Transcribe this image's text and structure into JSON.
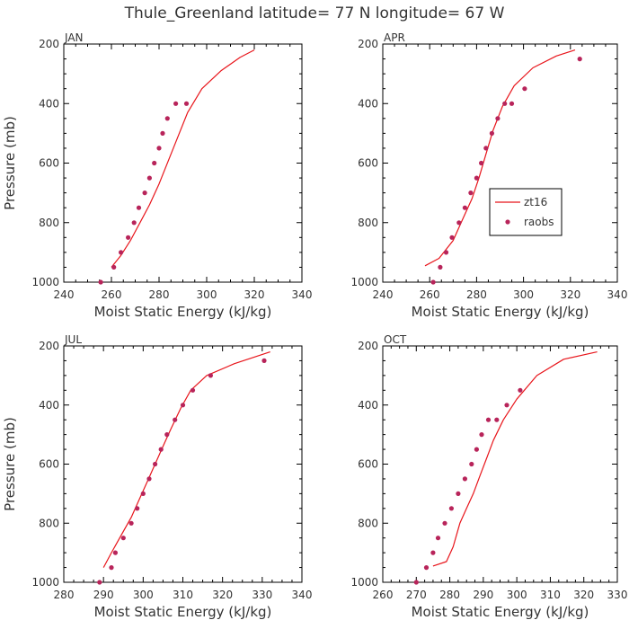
{
  "figure": {
    "title": "Thule_Greenland  latitude= 77 N longitude= 67 W",
    "legend": {
      "model_label": "zt16",
      "obs_label": "raobs",
      "placement": "APR panel, center-right"
    },
    "colors": {
      "model": "#e8151b",
      "obs": "#b8245a",
      "axes": "#000000",
      "text": "#333333"
    }
  },
  "chart_data": [
    {
      "type": "line",
      "month": "JAN",
      "xlabel": "Moist Static Energy (kJ/kg)",
      "ylabel": "Pressure (mb)",
      "xlim": [
        240,
        340
      ],
      "ylim": [
        1000,
        200
      ],
      "xticks": [
        240,
        260,
        280,
        300,
        320,
        340
      ],
      "yticks": [
        200,
        400,
        600,
        800,
        1000
      ],
      "series": [
        {
          "name": "zt16",
          "style": "line",
          "x": [
            260,
            264,
            268,
            272,
            276,
            280,
            284,
            288,
            292,
            298,
            306,
            314,
            320
          ],
          "y": [
            950,
            910,
            860,
            800,
            740,
            670,
            590,
            510,
            430,
            350,
            290,
            245,
            220
          ]
        },
        {
          "name": "raobs",
          "style": "points",
          "x": [
            255.5,
            261,
            264,
            267,
            269.5,
            271.5,
            274,
            276,
            278,
            280,
            281.5,
            283.5,
            287,
            291.5
          ],
          "y": [
            1000,
            950,
            900,
            850,
            800,
            750,
            700,
            650,
            600,
            550,
            500,
            450,
            400,
            400
          ]
        }
      ]
    },
    {
      "type": "line",
      "month": "APR",
      "xlabel": "Moist Static Energy (kJ/kg)",
      "ylabel": "",
      "xlim": [
        240,
        340
      ],
      "ylim": [
        1000,
        200
      ],
      "xticks": [
        240,
        260,
        280,
        300,
        320,
        340
      ],
      "yticks": [
        200,
        400,
        600,
        800,
        1000
      ],
      "series": [
        {
          "name": "zt16",
          "style": "line",
          "x": [
            258,
            264,
            270,
            274,
            278,
            281,
            284,
            287,
            291,
            296,
            304,
            314,
            322
          ],
          "y": [
            945,
            920,
            860,
            790,
            720,
            650,
            570,
            490,
            410,
            340,
            280,
            240,
            220
          ]
        },
        {
          "name": "raobs",
          "style": "points",
          "x": [
            261.5,
            264.5,
            267,
            269.5,
            272.5,
            275,
            277.5,
            280,
            282,
            284,
            286.5,
            289,
            292,
            295,
            300.5,
            324
          ],
          "y": [
            1000,
            950,
            900,
            850,
            800,
            750,
            700,
            650,
            600,
            550,
            500,
            450,
            400,
            400,
            350,
            250
          ]
        }
      ]
    },
    {
      "type": "line",
      "month": "JUL",
      "xlabel": "Moist Static Energy (kJ/kg)",
      "ylabel": "Pressure (mb)",
      "xlim": [
        280,
        340
      ],
      "ylim": [
        1000,
        200
      ],
      "xticks": [
        280,
        290,
        300,
        310,
        320,
        330,
        340
      ],
      "yticks": [
        200,
        400,
        600,
        800,
        1000
      ],
      "series": [
        {
          "name": "zt16",
          "style": "line",
          "x": [
            290,
            292,
            294.5,
            297,
            299,
            301,
            303,
            305,
            307,
            309.5,
            312,
            316,
            323,
            332
          ],
          "y": [
            950,
            900,
            840,
            780,
            720,
            660,
            600,
            540,
            480,
            410,
            350,
            300,
            260,
            220
          ]
        },
        {
          "name": "raobs",
          "style": "points",
          "x": [
            289,
            292,
            293,
            295,
            297,
            298.5,
            300,
            301.5,
            303,
            304.5,
            306,
            308,
            310,
            312.5,
            317,
            330.5
          ],
          "y": [
            1000,
            950,
            900,
            850,
            800,
            750,
            700,
            650,
            600,
            550,
            500,
            450,
            400,
            350,
            300,
            250
          ]
        }
      ]
    },
    {
      "type": "line",
      "month": "OCT",
      "xlabel": "Moist Static Energy (kJ/kg)",
      "ylabel": "",
      "xlim": [
        260,
        330
      ],
      "ylim": [
        1000,
        200
      ],
      "xticks": [
        260,
        270,
        280,
        290,
        300,
        310,
        320,
        330
      ],
      "yticks": [
        200,
        400,
        600,
        800,
        1000
      ],
      "series": [
        {
          "name": "zt16",
          "style": "line",
          "x": [
            275,
            279,
            281,
            283,
            285,
            287,
            289,
            291,
            293,
            296,
            300,
            306,
            314,
            324
          ],
          "y": [
            945,
            930,
            880,
            800,
            750,
            700,
            640,
            580,
            520,
            450,
            380,
            300,
            245,
            220
          ]
        },
        {
          "name": "raobs",
          "style": "points",
          "x": [
            270,
            273,
            275,
            276.5,
            278.5,
            280.5,
            282.5,
            284.5,
            286.5,
            288,
            289.5,
            291.5,
            294,
            297,
            301
          ],
          "y": [
            1000,
            950,
            900,
            850,
            800,
            750,
            700,
            650,
            600,
            550,
            500,
            450,
            450,
            400,
            350
          ]
        }
      ]
    }
  ]
}
